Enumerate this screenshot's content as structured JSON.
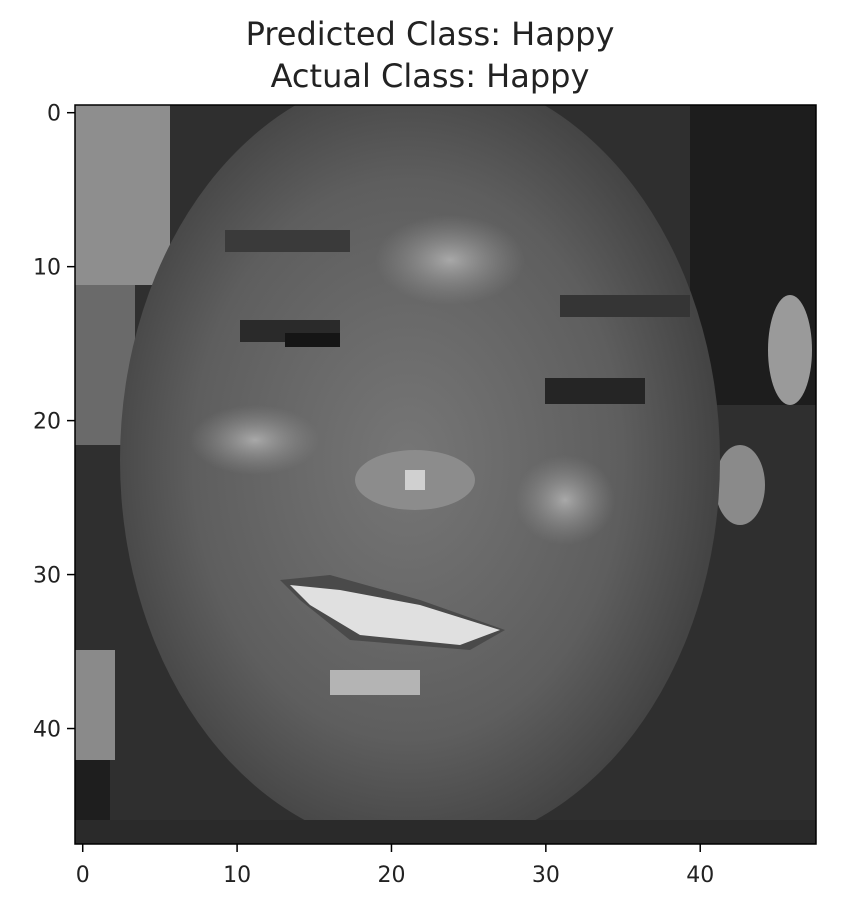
{
  "chart_data": {
    "type": "heatmap",
    "title_lines": [
      "Predicted Class: Happy",
      "Actual Class: Happy"
    ],
    "xlabel": "",
    "ylabel": "",
    "xlim": [
      -0.5,
      47.5
    ],
    "ylim": [
      47.5,
      -0.5
    ],
    "x_ticks": [
      0,
      10,
      20,
      30,
      40
    ],
    "y_ticks": [
      0,
      10,
      20,
      30,
      40
    ],
    "grid": false,
    "colormap": "gray",
    "image_shape": [
      48,
      48
    ]
  }
}
